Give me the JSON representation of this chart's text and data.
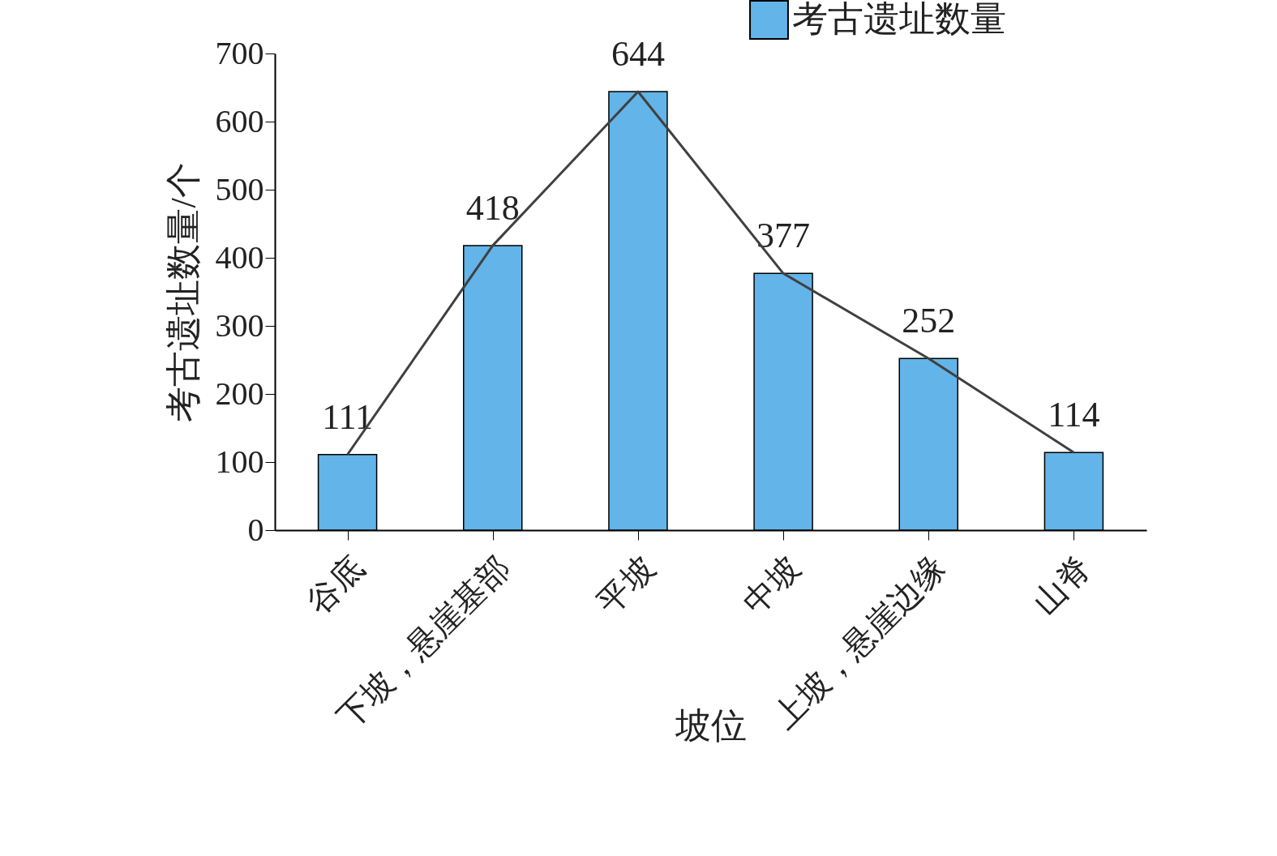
{
  "chart_data": {
    "type": "bar",
    "xlabel": "坡位",
    "ylabel": "考古遗址数量/个",
    "categories": [
      "谷底",
      "下坡，悬崖基部",
      "平坡",
      "中坡",
      "上坡，悬崖边缘",
      "山脊"
    ],
    "series": [
      {
        "name": "考古遗址数量",
        "color": "#63b4e8",
        "values": [
          111,
          418,
          644,
          377,
          252,
          114
        ],
        "value_labels": [
          "111",
          "418",
          "644",
          "377",
          "252",
          "114"
        ]
      },
      {
        "type": "line",
        "color": "#404040",
        "values": [
          111,
          418,
          644,
          377,
          252,
          114
        ]
      }
    ],
    "ylim": [
      0,
      700
    ],
    "yticks": [
      0,
      100,
      200,
      300,
      400,
      500,
      600,
      700
    ],
    "legend": "top right",
    "grid": false
  }
}
